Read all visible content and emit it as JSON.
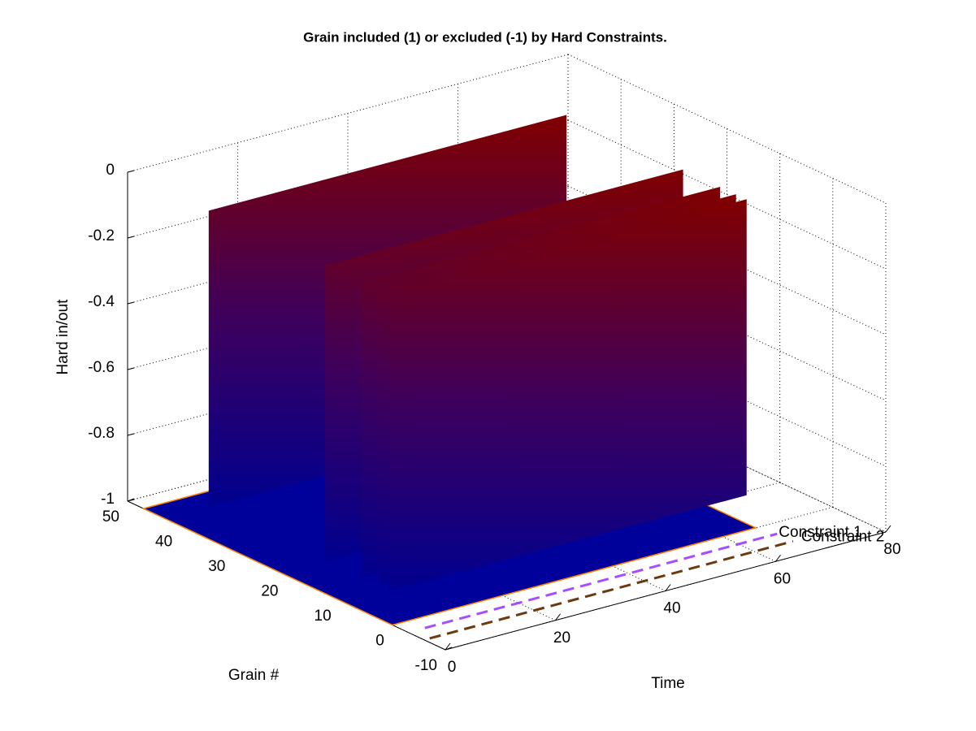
{
  "chart_data": {
    "type": "surface3d",
    "title": "Grain included (1) or excluded (-1) by Hard Constraints.",
    "xlabel": "Time",
    "ylabel": "Grain #",
    "zlabel": "Hard in/out",
    "xlim": [
      0,
      80
    ],
    "xticks": [
      0,
      20,
      40,
      60,
      80
    ],
    "ylim": [
      -10,
      50
    ],
    "yticks": [
      -10,
      0,
      10,
      20,
      30,
      40,
      50
    ],
    "zlim": [
      -1,
      0
    ],
    "zticks": [
      -1,
      -0.8,
      -0.6,
      -0.4,
      -0.2,
      0
    ],
    "grid": true,
    "floor": {
      "y": [
        0,
        47
      ],
      "x": [
        0,
        66
      ],
      "z": -1
    },
    "walls": [
      {
        "y": 43,
        "x": [
          8,
          73
        ],
        "z": -0.1
      },
      {
        "y": 21,
        "x": [
          8,
          73
        ],
        "z": -0.1
      },
      {
        "y": 14,
        "x": [
          8,
          73
        ],
        "z": -0.1
      },
      {
        "y": 11,
        "x": [
          8,
          73
        ],
        "z": -0.1
      },
      {
        "y": 9,
        "x": [
          8,
          73
        ],
        "z": -0.1
      }
    ],
    "series": [
      {
        "name": "Constraint 1",
        "color": "#a64dff",
        "y": -3,
        "x": [
          3,
          67
        ],
        "z": -1
      },
      {
        "name": "Constraint 2",
        "color": "#6b3a10",
        "y": -6,
        "x": [
          1,
          67
        ],
        "z": -1
      }
    ]
  }
}
